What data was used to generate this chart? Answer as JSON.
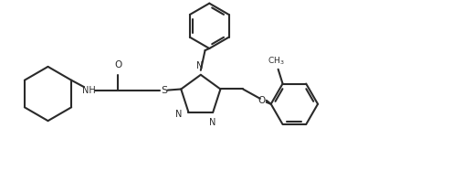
{
  "background_color": "#ffffff",
  "line_color": "#2a2a2a",
  "line_width": 1.5,
  "fig_width": 4.95,
  "fig_height": 2.1,
  "dpi": 100,
  "xlim": [
    0,
    10
  ],
  "ylim": [
    0,
    4.2
  ]
}
